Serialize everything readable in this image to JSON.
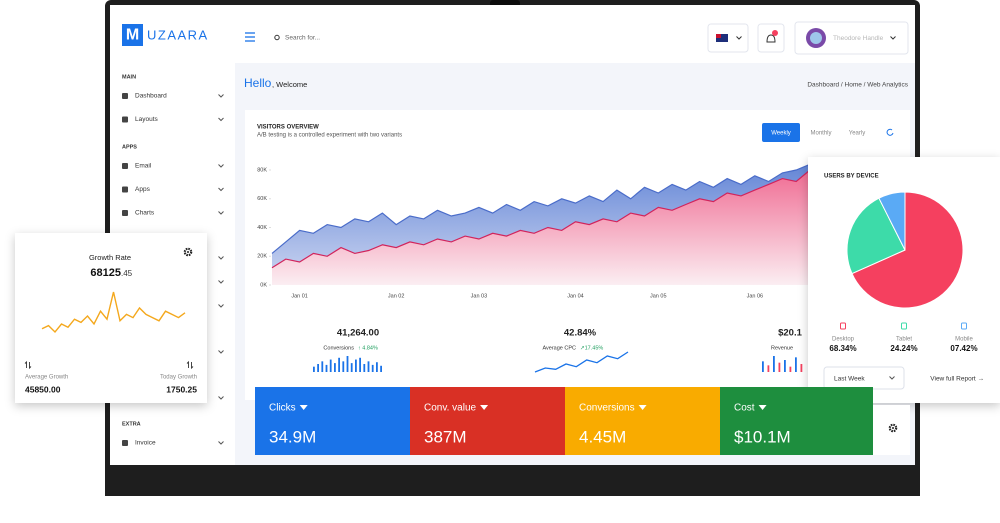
{
  "sidebar": {
    "logo_mark": "M",
    "logo_text": "UZAARA",
    "sections": [
      {
        "title": "MAIN",
        "items": [
          "Dashboard",
          "Layouts"
        ]
      },
      {
        "title": "APPS",
        "items": [
          "Email",
          "Apps",
          "Charts"
        ]
      },
      {
        "title": "EXTRA",
        "items": [
          "Invoice"
        ]
      }
    ]
  },
  "topbar": {
    "search": "Search for...",
    "user": "Theodore Handle"
  },
  "header": {
    "greeting": "Hello",
    "welcome": ", Welcome",
    "breadcrumb": "Dashboard / Home / Web Analytics"
  },
  "chart_data": [
    {
      "type": "area",
      "title": "VISITORS OVERVIEW",
      "subtitle": "A/B testing is a controlled experiment with two variants",
      "periods": [
        "Weekly",
        "Monthly",
        "Yearly"
      ],
      "categories": [
        null,
        null,
        "Jan 01",
        null,
        null,
        null,
        null,
        null,
        null,
        "Jan 02",
        null,
        null,
        null,
        null,
        null,
        "Jan 03",
        null,
        null,
        null,
        null,
        null,
        null,
        "Jan 04",
        null,
        null,
        null,
        null,
        null,
        "Jan 05",
        null,
        null,
        null,
        null,
        null,
        null,
        "Jan 06",
        null,
        null,
        null,
        null
      ],
      "series": [
        {
          "color": "#4a6cc9",
          "values": [
            22,
            30,
            38,
            36,
            42,
            40,
            46,
            44,
            50,
            42,
            48,
            46,
            52,
            48,
            50,
            54,
            50,
            56,
            52,
            58,
            55,
            60,
            57,
            62,
            58,
            66,
            60,
            68,
            64,
            70,
            66,
            72,
            68,
            74,
            70,
            76,
            72,
            78,
            80,
            84
          ]
        },
        {
          "color": "#d1245c",
          "values": [
            12,
            18,
            16,
            22,
            20,
            26,
            22,
            24,
            28,
            26,
            30,
            28,
            32,
            30,
            34,
            32,
            36,
            34,
            38,
            36,
            40,
            38,
            44,
            42,
            46,
            44,
            50,
            48,
            54,
            52,
            56,
            60,
            58,
            64,
            62,
            66,
            70,
            74,
            72,
            80
          ]
        }
      ],
      "ylim": [
        0,
        88
      ],
      "yticks": [
        {
          "value": 0,
          "label": "0K"
        },
        {
          "value": 20,
          "label": "20K"
        },
        {
          "value": 40,
          "label": "40K"
        },
        {
          "value": 60,
          "label": "60K"
        },
        {
          "value": 80,
          "label": "80K"
        }
      ],
      "grid": false
    },
    {
      "type": "pie",
      "title": "USERS BY DEVICE",
      "categories": [
        "Desktop",
        "Tablet",
        "Mobile"
      ],
      "values": [
        68.34,
        24.24,
        7.42
      ],
      "value_labels": [
        "68.34%",
        "24.24%",
        "07.42%"
      ],
      "colors": [
        "#f5405f",
        "#3ddba9",
        "#5aaaf5"
      ],
      "legend_colors": [
        "#f5405f",
        "#3ddba9",
        "#5aaaf5"
      ],
      "range_select": "Last Week",
      "link": "View full Report →"
    }
  ],
  "stats": [
    {
      "value": "41,264.00",
      "label": "Conversions",
      "change": "↑ 4.84%",
      "spark": [
        6,
        9,
        12,
        8,
        14,
        10,
        16,
        12,
        18,
        10,
        14,
        16,
        9,
        12,
        8,
        11,
        7
      ]
    },
    {
      "value": "42.84%",
      "label": "Average CPC",
      "change": "↗17.45%",
      "spark": [
        3,
        6,
        5,
        9,
        7,
        12,
        10,
        15,
        13,
        18
      ]
    },
    {
      "value": "$20.1",
      "label": "Revenue",
      "spark": [
        8,
        5,
        12,
        7,
        9,
        4,
        11,
        6
      ]
    }
  ],
  "growth": {
    "title": "Growth Rate",
    "value_int": "68125",
    "value_dec": ".45",
    "spark": [
      22,
      24,
      20,
      25,
      23,
      28,
      26,
      30,
      25,
      33,
      28,
      45,
      27,
      31,
      29,
      35,
      31,
      29,
      27,
      33,
      31,
      29,
      32
    ],
    "average_label": "Average Growth",
    "average_value": "45850.00",
    "today_label": "Today Growth",
    "today_value": "1750.25"
  },
  "kpis": [
    {
      "label": "Clicks",
      "value": "34.9M",
      "color": "#1a73e8"
    },
    {
      "label": "Conv. value",
      "value": "387M",
      "color": "#d93025"
    },
    {
      "label": "Conversions",
      "value": "4.45M",
      "color": "#f9ab00"
    },
    {
      "label": "Cost",
      "value": "$10.1M",
      "color": "#1e8e3e"
    }
  ]
}
